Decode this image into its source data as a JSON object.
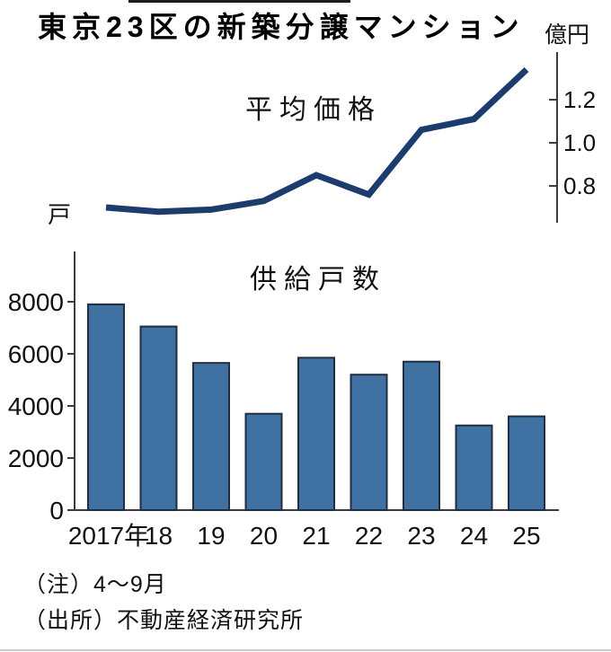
{
  "page": {
    "title": "東京23区の新築分譲マンション",
    "notes": {
      "period": "（注）4～9月",
      "source": "（出所）不動産経済研究所"
    }
  },
  "chart_data": [
    {
      "type": "line",
      "title": "平均価格",
      "unit_label": "億円",
      "x": [
        "2017",
        "18",
        "19",
        "20",
        "21",
        "22",
        "23",
        "24",
        "25"
      ],
      "values": [
        0.7,
        0.68,
        0.69,
        0.73,
        0.85,
        0.76,
        1.06,
        1.11,
        1.34
      ],
      "yticks": [
        1.2,
        1.0,
        0.8
      ],
      "ylim": [
        0.63,
        1.42
      ],
      "axis_side": "right",
      "grid": false,
      "legend_position": "none",
      "line_color": "#1d3c6e",
      "axis_color": "#3c3c3c"
    },
    {
      "type": "bar",
      "title": "供給戸数",
      "unit_label": "戸",
      "categories": [
        "2017年",
        "18",
        "19",
        "20",
        "21",
        "22",
        "23",
        "24",
        "25"
      ],
      "values": [
        7900,
        7050,
        5650,
        3700,
        5850,
        5200,
        5700,
        3250,
        3600
      ],
      "yticks": [
        8000,
        6000,
        4000,
        2000,
        0
      ],
      "ylim": [
        0,
        10000
      ],
      "axis_side": "left",
      "grid": false,
      "legend_position": "none",
      "bar_color": "#3f72a3",
      "bar_border_color": "#1f2e40",
      "axis_color": "#3c3c3c"
    }
  ]
}
